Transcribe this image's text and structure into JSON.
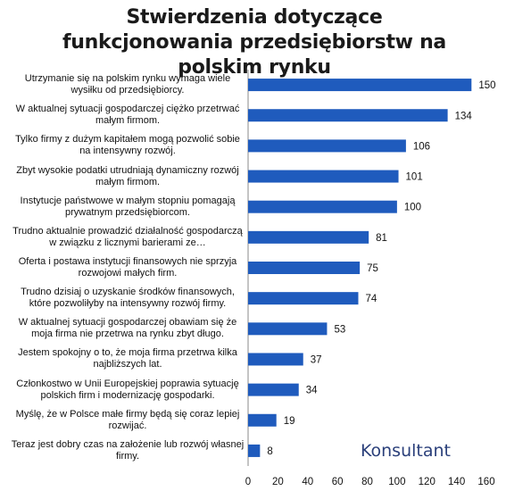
{
  "chart_data": {
    "type": "bar",
    "orientation": "horizontal",
    "title": "Stwierdzenia dotyczące funkcjonowania przedsiębiorstw na polskim rynku",
    "categories": [
      "Utrzymanie się na polskim rynku wymaga wiele wysiłku od przedsiębiorcy.",
      "W aktualnej sytuacji gospodarczej ciężko przetrwać małym firmom.",
      "Tylko firmy z dużym kapitałem mogą pozwolić sobie na intensywny rozwój.",
      "Zbyt wysokie podatki utrudniają dynamiczny rozwój małym firmom.",
      "Instytucje państwowe w małym stopniu pomagają prywatnym przedsiębiorcom.",
      "Trudno aktualnie prowadzić działalność gospodarczą w związku z licznymi barierami ze…",
      "Oferta i postawa instytucji finansowych nie sprzyja rozwojowi małych firm.",
      "Trudno dzisiaj o uzyskanie środków finansowych, które pozwoliłyby na intensywny rozwój firmy.",
      "W aktualnej sytuacji gospodarczej obawiam się że moja firma nie przetrwa na rynku zbyt długo.",
      "Jestem spokojny o to, że moja firma przetrwa kilka najbliższych lat.",
      "Członkostwo w Unii Europejskiej poprawia sytuację polskich firm i modernizację gospodarki.",
      "Myślę, że w Polsce małe firmy będą się coraz lepiej rozwijać.",
      "Teraz jest dobry czas na założenie lub rozwój własnej firmy."
    ],
    "values": [
      150,
      134,
      106,
      101,
      100,
      81,
      75,
      74,
      53,
      37,
      34,
      19,
      8
    ],
    "color": "#1f5bbd",
    "xlim": [
      0,
      160
    ],
    "xticks": [
      0,
      20,
      40,
      60,
      80,
      100,
      120,
      140,
      160
    ],
    "logo": "Konsultant"
  }
}
